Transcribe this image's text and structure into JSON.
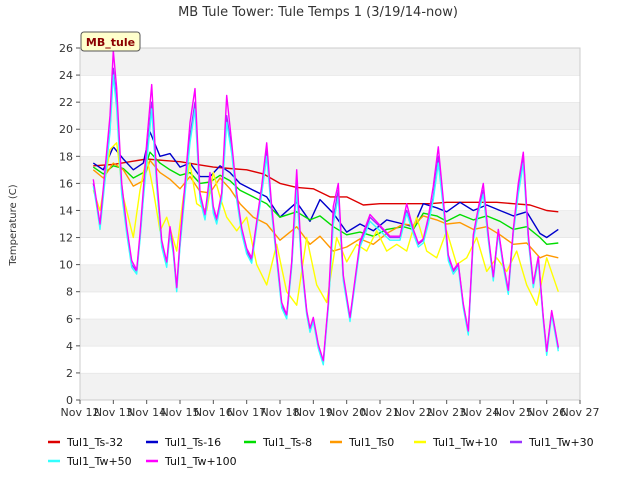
{
  "chart_data": {
    "type": "line",
    "title": "MB Tule Tower: Tule Temps 1 (3/19/14-now)",
    "xlabel": "",
    "ylabel": "Temperature (C)",
    "xlim": [
      0,
      15
    ],
    "ylim": [
      0,
      26
    ],
    "yticks": [
      0,
      2,
      4,
      6,
      8,
      10,
      12,
      14,
      16,
      18,
      20,
      22,
      24,
      26
    ],
    "xtick_labels": [
      "Nov 12",
      "Nov 13",
      "Nov 14",
      "Nov 15",
      "Nov 16",
      "Nov 17",
      "Nov 18",
      "Nov 19",
      "Nov 20",
      "Nov 21",
      "Nov 22",
      "Nov 23",
      "Nov 24",
      "Nov 25",
      "Nov 26",
      "Nov 27"
    ],
    "stamp": "MB_tule",
    "grid": "alternating horizontal bands",
    "legend_position": "bottom",
    "series": [
      {
        "name": "Tul1_Ts-32",
        "color": "#dd0000",
        "x": [
          0.4,
          1.0,
          1.5,
          2.0,
          2.5,
          3.0,
          3.5,
          4.0,
          4.5,
          5.0,
          5.5,
          6.0,
          6.5,
          7.0,
          7.5,
          8.0,
          8.5,
          9.0,
          9.5,
          10.0,
          10.5,
          11.0,
          11.5,
          12.0,
          12.5,
          13.0,
          13.5,
          14.0,
          14.35
        ],
        "y": [
          17.3,
          17.4,
          17.6,
          17.8,
          17.7,
          17.6,
          17.4,
          17.2,
          17.1,
          17.0,
          16.7,
          16.0,
          15.7,
          15.6,
          15.0,
          15.0,
          14.4,
          14.5,
          14.5,
          14.5,
          14.5,
          14.6,
          14.6,
          14.6,
          14.6,
          14.5,
          14.4,
          14.0,
          13.9
        ]
      },
      {
        "name": "Tul1_Ts-16",
        "color": "#0000cc",
        "x": [
          0.4,
          0.7,
          1.0,
          1.3,
          1.6,
          1.9,
          2.1,
          2.4,
          2.7,
          3.0,
          3.3,
          3.6,
          3.9,
          4.2,
          4.5,
          4.8,
          5.2,
          5.6,
          6.0,
          6.5,
          6.9,
          7.2,
          7.6,
          8.0,
          8.4,
          8.8,
          9.2,
          9.7,
          10.0,
          10.3,
          10.7,
          11.0,
          11.4,
          11.8,
          12.2,
          12.6,
          13.0,
          13.4,
          13.8,
          14.0,
          14.35
        ],
        "y": [
          17.5,
          17.0,
          18.7,
          17.8,
          17.0,
          17.5,
          19.8,
          18.0,
          18.2,
          17.2,
          17.5,
          16.5,
          16.5,
          17.3,
          16.8,
          16.0,
          15.5,
          15.0,
          13.5,
          14.6,
          13.2,
          14.8,
          13.8,
          12.4,
          13.0,
          12.5,
          13.3,
          13.0,
          12.8,
          14.5,
          14.2,
          13.9,
          14.6,
          14.0,
          14.4,
          14.0,
          13.6,
          13.9,
          12.3,
          12.0,
          12.6
        ]
      },
      {
        "name": "Tul1_Ts-8",
        "color": "#00dd00",
        "x": [
          0.4,
          0.7,
          1.0,
          1.3,
          1.6,
          1.9,
          2.1,
          2.4,
          2.7,
          3.0,
          3.3,
          3.6,
          3.9,
          4.2,
          4.5,
          4.8,
          5.2,
          5.6,
          6.0,
          6.5,
          6.9,
          7.2,
          7.6,
          8.0,
          8.4,
          8.8,
          9.2,
          9.7,
          10.0,
          10.3,
          10.7,
          11.0,
          11.4,
          11.8,
          12.2,
          12.6,
          13.0,
          13.4,
          13.8,
          14.0,
          14.35
        ],
        "y": [
          17.2,
          16.7,
          17.3,
          17.1,
          16.4,
          16.8,
          18.3,
          17.5,
          17.0,
          16.6,
          16.8,
          16.0,
          16.1,
          16.6,
          16.2,
          15.5,
          15.0,
          14.5,
          13.5,
          13.9,
          13.3,
          13.6,
          12.8,
          12.2,
          12.4,
          12.1,
          12.6,
          12.8,
          12.6,
          13.8,
          13.6,
          13.2,
          13.7,
          13.3,
          13.6,
          13.2,
          12.6,
          12.8,
          12.0,
          11.5,
          11.6
        ]
      },
      {
        "name": "Tul1_Ts0",
        "color": "#ff9900",
        "x": [
          0.4,
          0.7,
          1.0,
          1.3,
          1.6,
          1.9,
          2.1,
          2.4,
          2.7,
          3.0,
          3.3,
          3.6,
          3.9,
          4.2,
          4.5,
          4.8,
          5.2,
          5.6,
          6.0,
          6.5,
          6.9,
          7.2,
          7.6,
          8.0,
          8.4,
          8.8,
          9.2,
          9.7,
          10.0,
          10.3,
          10.7,
          11.0,
          11.4,
          11.8,
          12.2,
          12.6,
          13.0,
          13.4,
          13.8,
          14.0,
          14.35
        ],
        "y": [
          17.0,
          16.4,
          17.5,
          17.0,
          15.8,
          16.2,
          17.7,
          16.8,
          16.3,
          15.6,
          16.5,
          15.4,
          15.3,
          16.4,
          15.6,
          14.5,
          13.5,
          13.0,
          11.8,
          12.8,
          11.5,
          12.1,
          11.0,
          11.3,
          11.9,
          11.5,
          12.3,
          13.0,
          12.9,
          13.6,
          13.3,
          13.0,
          13.1,
          12.6,
          12.8,
          12.2,
          11.5,
          11.6,
          10.5,
          10.7,
          10.5
        ]
      },
      {
        "name": "Tul1_Tw+10",
        "color": "#ffff00",
        "x": [
          0.4,
          0.6,
          0.9,
          1.1,
          1.3,
          1.6,
          1.8,
          2.0,
          2.2,
          2.4,
          2.6,
          2.9,
          3.1,
          3.3,
          3.5,
          3.8,
          4.0,
          4.2,
          4.4,
          4.7,
          5.0,
          5.3,
          5.6,
          5.9,
          6.2,
          6.5,
          6.8,
          7.1,
          7.4,
          7.7,
          8.0,
          8.3,
          8.6,
          8.9,
          9.2,
          9.5,
          9.8,
          10.1,
          10.4,
          10.7,
          11.0,
          11.3,
          11.6,
          11.9,
          12.2,
          12.5,
          12.8,
          13.1,
          13.4,
          13.7,
          14.0,
          14.35
        ],
        "y": [
          15.5,
          14.0,
          18.5,
          19.0,
          15.0,
          12.0,
          15.5,
          18.0,
          15.5,
          12.5,
          13.5,
          11.0,
          15.0,
          17.5,
          14.5,
          14.0,
          16.8,
          15.0,
          13.5,
          12.5,
          13.5,
          10.0,
          8.5,
          11.5,
          8.0,
          7.0,
          12.0,
          8.5,
          7.2,
          12.0,
          10.2,
          11.5,
          11.0,
          12.5,
          11.0,
          11.5,
          11.0,
          13.5,
          11.0,
          10.5,
          12.5,
          10.0,
          10.5,
          12.0,
          9.5,
          10.5,
          9.5,
          11.0,
          8.5,
          7.0,
          10.5,
          8.0
        ]
      },
      {
        "name": "Tul1_Tw+30",
        "color": "#9933ff",
        "x": [
          0.4,
          0.5,
          0.6,
          0.75,
          0.9,
          1.0,
          1.1,
          1.25,
          1.4,
          1.55,
          1.7,
          1.8,
          1.9,
          2.0,
          2.15,
          2.3,
          2.45,
          2.6,
          2.7,
          2.8,
          2.9,
          3.0,
          3.15,
          3.3,
          3.45,
          3.6,
          3.75,
          3.9,
          4.0,
          4.1,
          4.25,
          4.4,
          4.55,
          4.7,
          4.85,
          5.0,
          5.15,
          5.3,
          5.45,
          5.6,
          5.75,
          5.9,
          6.05,
          6.2,
          6.35,
          6.5,
          6.65,
          6.8,
          6.9,
          7.0,
          7.15,
          7.3,
          7.45,
          7.6,
          7.75,
          7.9,
          8.1,
          8.4,
          8.7,
          9.0,
          9.3,
          9.6,
          9.8,
          10.0,
          10.15,
          10.3,
          10.45,
          10.6,
          10.75,
          10.9,
          11.05,
          11.2,
          11.35,
          11.5,
          11.65,
          11.8,
          11.95,
          12.1,
          12.25,
          12.4,
          12.55,
          12.7,
          12.85,
          13.0,
          13.15,
          13.3,
          13.45,
          13.6,
          13.75,
          13.9,
          14.0,
          14.15,
          14.35
        ],
        "y": [
          16.0,
          14.5,
          12.8,
          16.5,
          20.0,
          24.5,
          22.0,
          15.5,
          12.5,
          10.0,
          9.5,
          12.0,
          15.0,
          18.0,
          22.0,
          16.0,
          11.5,
          10.0,
          12.5,
          11.0,
          8.2,
          11.5,
          15.5,
          19.5,
          22.0,
          15.0,
          13.5,
          16.5,
          14.0,
          13.2,
          15.0,
          21.0,
          18.5,
          15.0,
          12.5,
          11.0,
          10.3,
          13.0,
          15.5,
          18.5,
          14.0,
          10.5,
          7.0,
          6.2,
          10.0,
          16.0,
          10.0,
          6.5,
          5.2,
          6.0,
          4.0,
          2.8,
          7.0,
          13.5,
          15.5,
          9.0,
          6.0,
          11.5,
          13.5,
          12.8,
          12.0,
          12.0,
          14.0,
          12.5,
          11.5,
          11.8,
          13.2,
          15.0,
          18.0,
          14.5,
          10.5,
          9.5,
          10.0,
          7.0,
          5.0,
          12.0,
          14.0,
          15.5,
          12.0,
          9.0,
          12.5,
          10.0,
          8.0,
          12.5,
          15.5,
          18.0,
          12.0,
          8.5,
          10.5,
          6.0,
          3.5,
          6.5,
          3.8
        ]
      },
      {
        "name": "Tul1_Tw+50",
        "color": "#33ffff",
        "x": [
          0.4,
          0.5,
          0.6,
          0.75,
          0.9,
          1.0,
          1.1,
          1.25,
          1.4,
          1.55,
          1.7,
          1.8,
          1.9,
          2.0,
          2.15,
          2.3,
          2.45,
          2.6,
          2.7,
          2.8,
          2.9,
          3.0,
          3.15,
          3.3,
          3.45,
          3.6,
          3.75,
          3.9,
          4.0,
          4.1,
          4.25,
          4.4,
          4.55,
          4.7,
          4.85,
          5.0,
          5.15,
          5.3,
          5.45,
          5.6,
          5.75,
          5.9,
          6.05,
          6.2,
          6.35,
          6.5,
          6.65,
          6.8,
          6.9,
          7.0,
          7.15,
          7.3,
          7.45,
          7.6,
          7.75,
          7.9,
          8.1,
          8.4,
          8.7,
          9.0,
          9.3,
          9.6,
          9.8,
          10.0,
          10.15,
          10.3,
          10.45,
          10.6,
          10.75,
          10.9,
          11.05,
          11.2,
          11.35,
          11.5,
          11.65,
          11.8,
          11.95,
          12.1,
          12.25,
          12.4,
          12.55,
          12.7,
          12.85,
          13.0,
          13.15,
          13.3,
          13.45,
          13.6,
          13.75,
          13.9,
          14.0,
          14.15,
          14.35
        ],
        "y": [
          15.8,
          14.3,
          12.6,
          16.2,
          19.8,
          24.0,
          21.5,
          15.2,
          12.3,
          9.8,
          9.3,
          11.8,
          14.8,
          17.5,
          21.5,
          15.8,
          11.3,
          9.8,
          12.3,
          10.8,
          8.0,
          11.3,
          15.2,
          19.0,
          21.5,
          14.8,
          13.3,
          16.2,
          13.8,
          13.0,
          14.8,
          20.5,
          18.2,
          14.8,
          12.3,
          10.8,
          10.1,
          12.8,
          15.2,
          18.0,
          13.8,
          10.3,
          6.8,
          6.0,
          9.8,
          15.5,
          9.8,
          6.3,
          5.0,
          5.8,
          3.8,
          2.6,
          6.8,
          13.0,
          15.0,
          8.8,
          5.8,
          11.3,
          13.2,
          12.5,
          11.8,
          11.8,
          13.8,
          12.3,
          11.3,
          11.6,
          13.0,
          14.8,
          17.5,
          14.2,
          10.3,
          9.3,
          9.8,
          6.8,
          4.8,
          11.8,
          13.8,
          15.2,
          11.8,
          8.8,
          12.3,
          9.8,
          7.8,
          12.3,
          15.2,
          17.5,
          11.8,
          8.3,
          10.3,
          5.8,
          3.3,
          6.3,
          3.6
        ]
      },
      {
        "name": "Tul1_Tw+100",
        "color": "#ff00ff",
        "x": [
          0.4,
          0.5,
          0.6,
          0.75,
          0.9,
          1.0,
          1.1,
          1.25,
          1.4,
          1.55,
          1.7,
          1.8,
          1.9,
          2.0,
          2.15,
          2.3,
          2.45,
          2.6,
          2.7,
          2.8,
          2.9,
          3.0,
          3.15,
          3.3,
          3.45,
          3.6,
          3.75,
          3.9,
          4.0,
          4.1,
          4.25,
          4.4,
          4.55,
          4.7,
          4.85,
          5.0,
          5.15,
          5.3,
          5.45,
          5.6,
          5.75,
          5.9,
          6.05,
          6.2,
          6.35,
          6.5,
          6.65,
          6.8,
          6.9,
          7.0,
          7.15,
          7.3,
          7.45,
          7.6,
          7.75,
          7.9,
          8.1,
          8.4,
          8.7,
          9.0,
          9.3,
          9.6,
          9.8,
          10.0,
          10.15,
          10.3,
          10.45,
          10.6,
          10.75,
          10.9,
          11.05,
          11.2,
          11.35,
          11.5,
          11.65,
          11.8,
          11.95,
          12.1,
          12.25,
          12.4,
          12.55,
          12.7,
          12.85,
          13.0,
          13.15,
          13.3,
          13.45,
          13.6,
          13.75,
          13.9,
          14.0,
          14.15,
          14.35
        ],
        "y": [
          16.3,
          14.6,
          13.0,
          17.0,
          21.0,
          25.8,
          23.0,
          16.0,
          12.8,
          10.3,
          9.6,
          12.3,
          15.5,
          19.0,
          23.3,
          16.5,
          11.8,
          10.2,
          12.8,
          11.2,
          8.3,
          11.8,
          16.0,
          20.5,
          23.0,
          15.3,
          13.7,
          16.8,
          14.3,
          13.4,
          15.3,
          22.5,
          19.0,
          15.3,
          12.7,
          11.2,
          10.5,
          13.2,
          15.8,
          19.0,
          14.3,
          10.7,
          7.2,
          6.3,
          10.2,
          17.0,
          10.2,
          6.6,
          5.3,
          6.1,
          4.1,
          2.9,
          7.2,
          14.3,
          16.0,
          9.2,
          6.1,
          11.7,
          13.7,
          12.9,
          12.1,
          12.1,
          14.5,
          12.6,
          11.6,
          11.9,
          13.5,
          15.8,
          18.7,
          14.8,
          10.7,
          9.6,
          10.1,
          7.1,
          5.1,
          12.2,
          14.2,
          16.0,
          12.2,
          9.1,
          12.6,
          10.1,
          8.1,
          12.6,
          16.0,
          18.3,
          12.2,
          8.6,
          10.6,
          6.1,
          3.6,
          6.6,
          3.9
        ]
      }
    ]
  }
}
